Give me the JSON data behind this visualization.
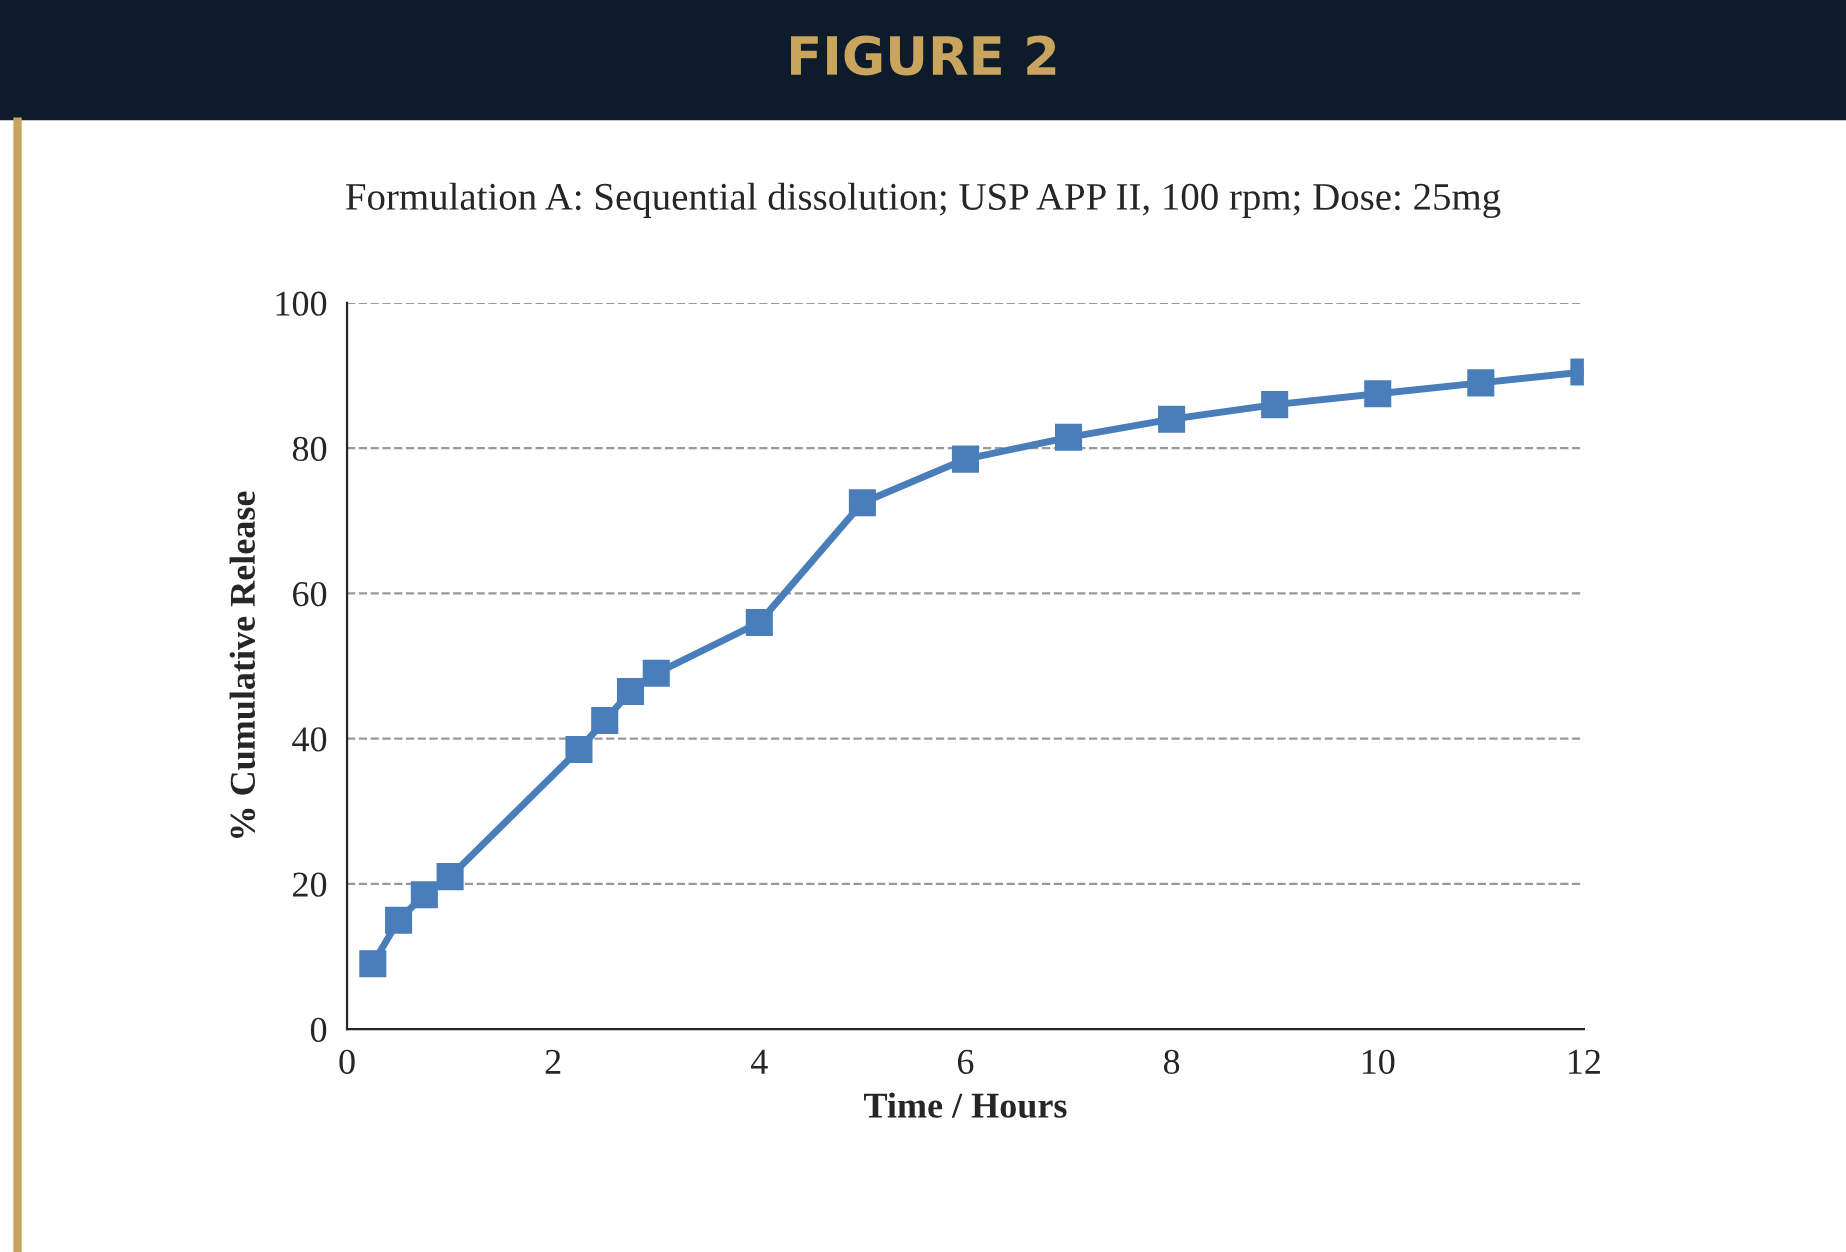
{
  "chart_data": {
    "type": "line",
    "title": "FIGURE 2",
    "subtitle": "Formulation A: Sequential dissolution; USP APP II, 100 rpm; Dose: 25mg",
    "xlabel": "Time / Hours",
    "ylabel": "% Cumulative Release",
    "x": [
      0.25,
      0.5,
      0.75,
      1,
      2.25,
      2.5,
      2.75,
      3,
      4,
      5,
      6,
      7,
      8,
      9,
      10,
      11,
      12
    ],
    "series": [
      {
        "color": "#4a7ebb",
        "values": [
          9,
          15,
          18.5,
          21,
          38.5,
          42.5,
          46.5,
          49,
          56,
          72.5,
          78.5,
          81.5,
          84,
          86,
          87.5,
          89,
          90.5
        ]
      }
    ],
    "xlim": [
      0,
      12
    ],
    "xticks": [
      0,
      2,
      4,
      6,
      8,
      10,
      12
    ],
    "ylim": [
      0,
      100
    ],
    "yticks": [
      0,
      20,
      40,
      60,
      80,
      100
    ],
    "grid": "y",
    "marker": "square",
    "line_style": "solid"
  }
}
